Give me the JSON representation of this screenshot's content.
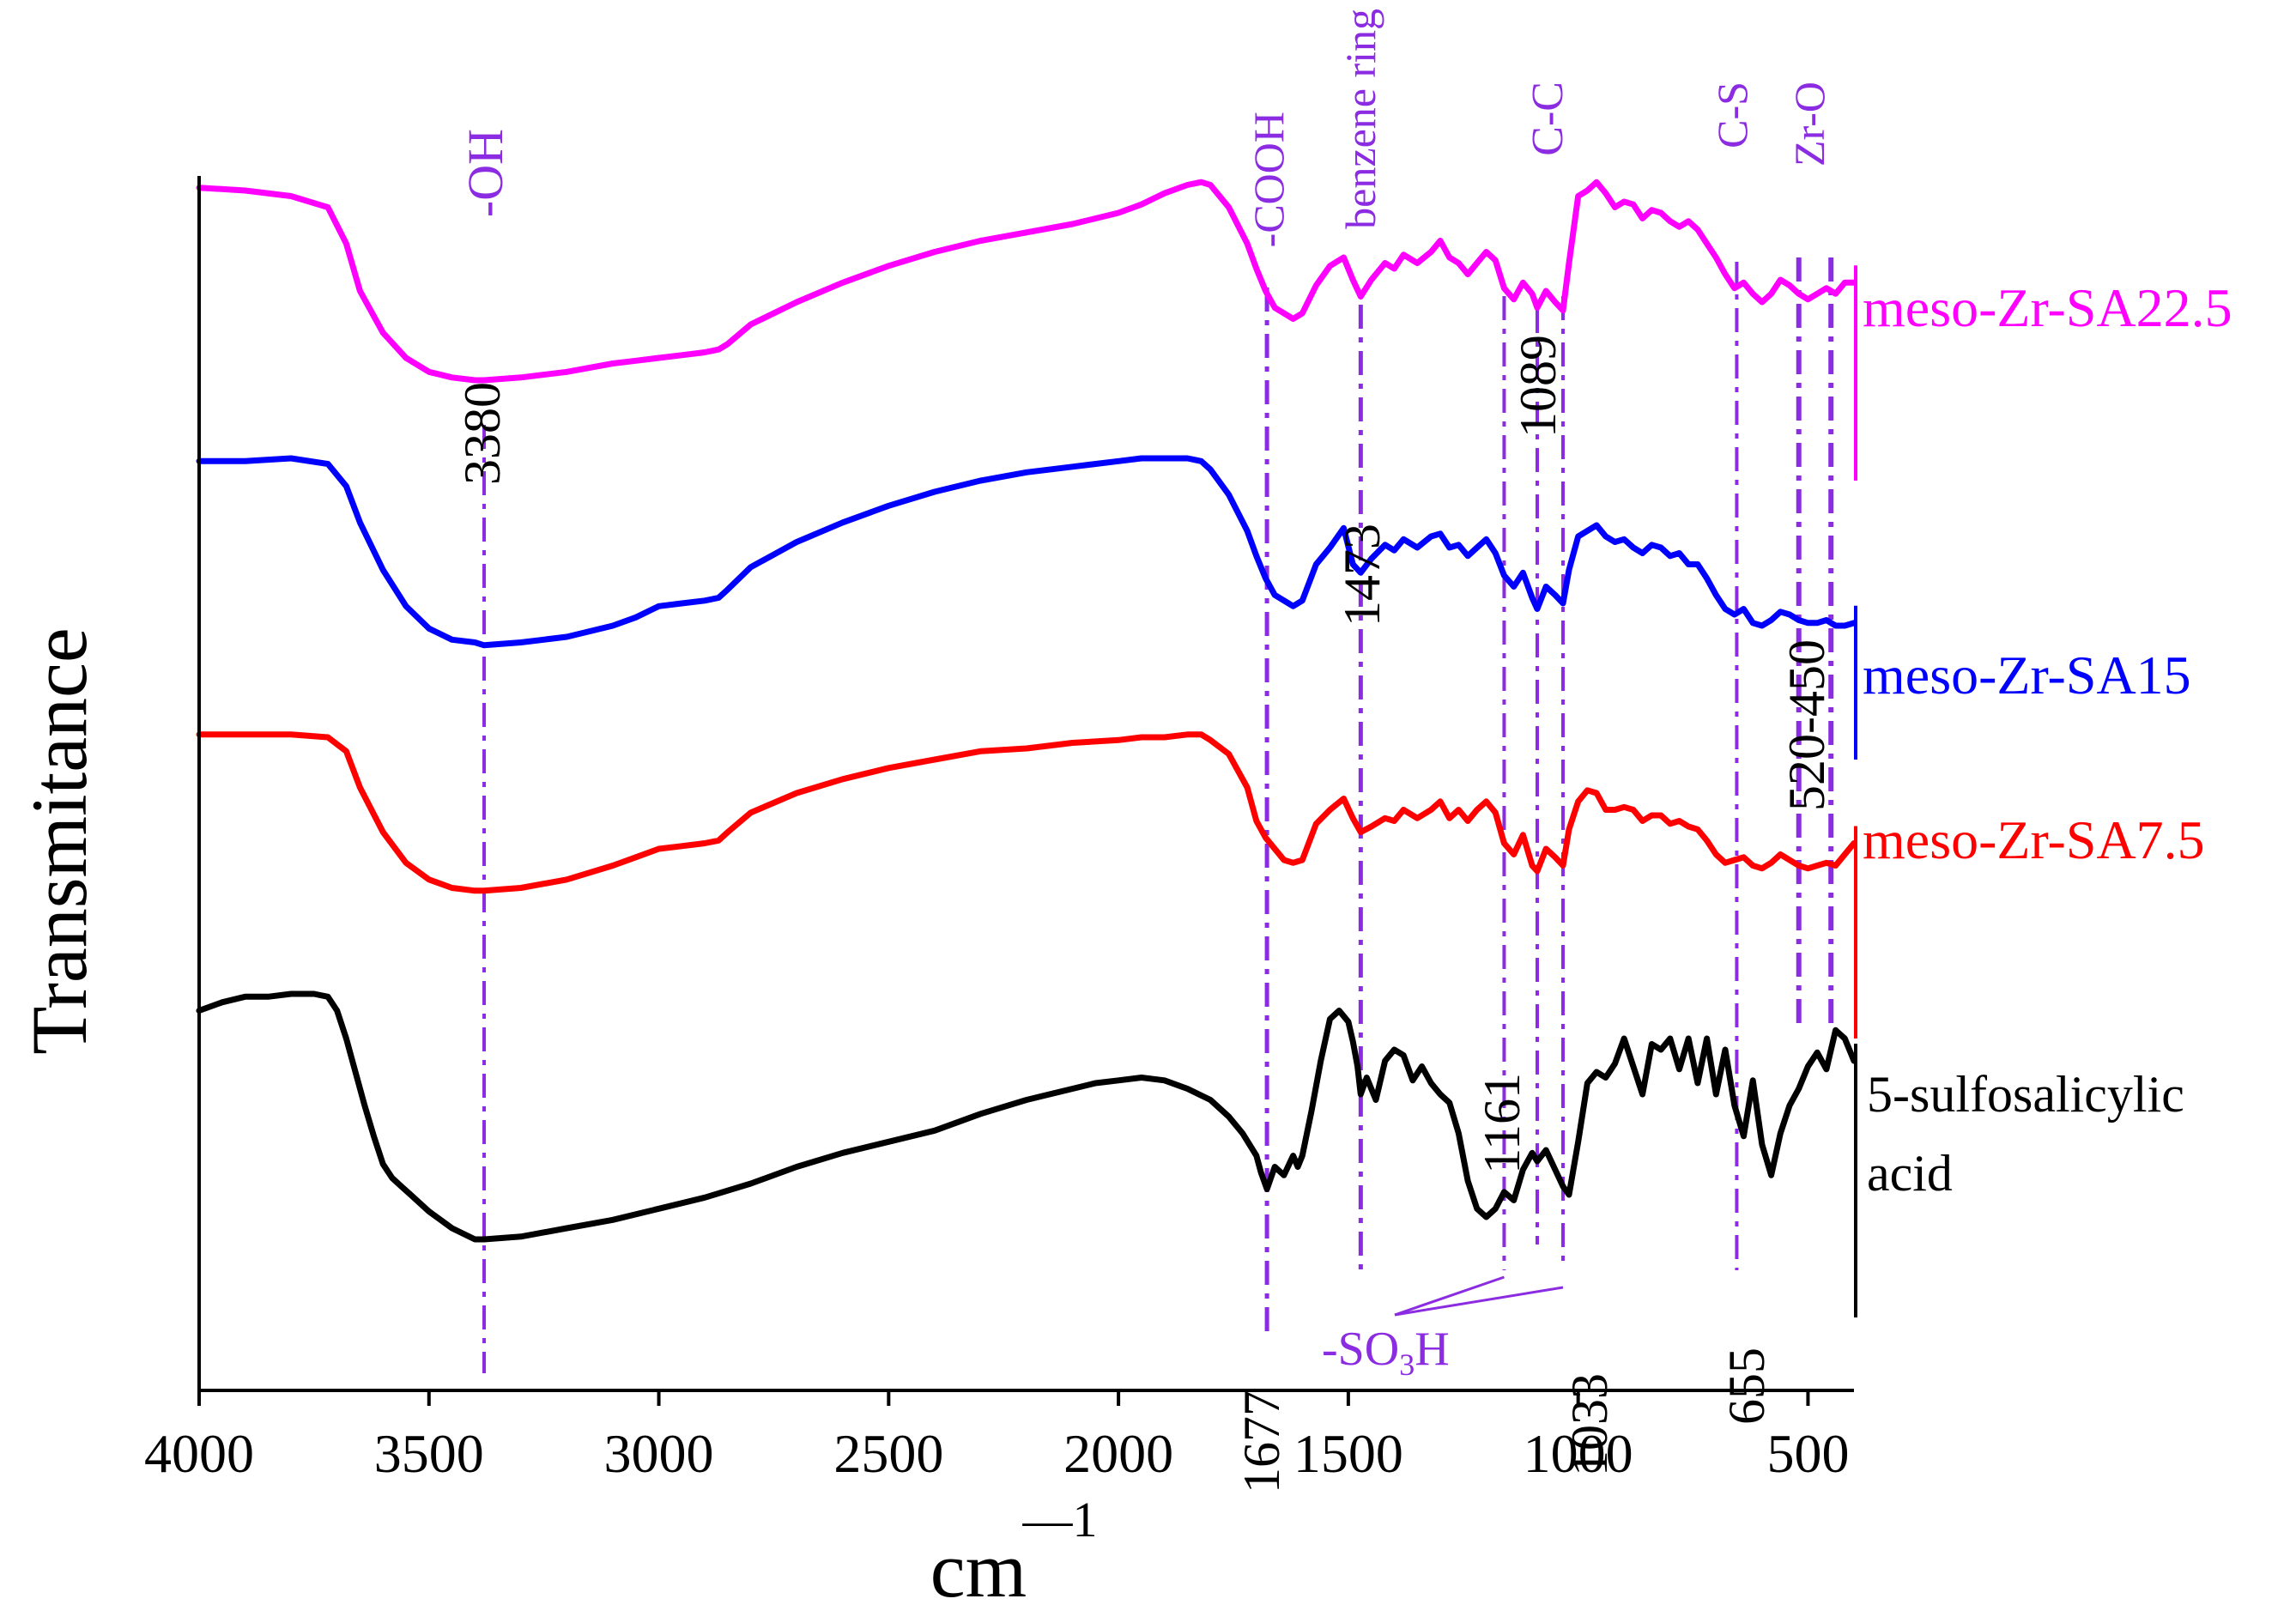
{
  "chart_data": {
    "type": "line",
    "title": "",
    "xlabel": "cm",
    "xlabel_superscript": "—1",
    "ylabel": "Transmitance",
    "xlim": [
      4000,
      400
    ],
    "x_reversed": true,
    "x_ticks": [
      {
        "value": 4000,
        "label": "4000"
      },
      {
        "value": 3500,
        "label": "3500"
      },
      {
        "value": 3000,
        "label": "3000"
      },
      {
        "value": 2500,
        "label": "2500"
      },
      {
        "value": 2000,
        "label": "2000"
      },
      {
        "value": 1500,
        "label": "1500"
      },
      {
        "value": 1000,
        "label": "1000"
      },
      {
        "value": 500,
        "label": "500"
      }
    ],
    "y_ticks_shown": false,
    "grid": false,
    "legend": "labels at right end of each trace",
    "series": [
      {
        "name": "meso-Zr-SA22.5",
        "color": "#ff00ff",
        "stack_index": 3,
        "x": [
          4000,
          3900,
          3800,
          3720,
          3680,
          3650,
          3600,
          3550,
          3500,
          3450,
          3400,
          3380,
          3300,
          3200,
          3100,
          3050,
          3000,
          2950,
          2900,
          2870,
          2850,
          2800,
          2700,
          2600,
          2500,
          2400,
          2300,
          2200,
          2100,
          2000,
          1950,
          1900,
          1850,
          1820,
          1800,
          1760,
          1720,
          1700,
          1680,
          1660,
          1640,
          1620,
          1600,
          1570,
          1540,
          1510,
          1490,
          1473,
          1450,
          1420,
          1400,
          1380,
          1350,
          1320,
          1300,
          1280,
          1260,
          1240,
          1220,
          1200,
          1180,
          1161,
          1140,
          1120,
          1100,
          1089,
          1070,
          1050,
          1033,
          1020,
          1000,
          980,
          960,
          940,
          920,
          900,
          880,
          860,
          840,
          820,
          800,
          780,
          760,
          740,
          720,
          700,
          680,
          660,
          640,
          620,
          600,
          580,
          560,
          540,
          520,
          500,
          480,
          460,
          440,
          420,
          400
        ],
        "y": [
          3.45,
          3.44,
          3.42,
          3.38,
          3.25,
          3.08,
          2.93,
          2.84,
          2.79,
          2.77,
          2.76,
          2.76,
          2.77,
          2.79,
          2.82,
          2.83,
          2.84,
          2.85,
          2.86,
          2.87,
          2.89,
          2.96,
          3.04,
          3.11,
          3.17,
          3.22,
          3.26,
          3.29,
          3.32,
          3.36,
          3.39,
          3.43,
          3.46,
          3.47,
          3.46,
          3.38,
          3.25,
          3.16,
          3.08,
          3.02,
          3.0,
          2.98,
          3.0,
          3.1,
          3.17,
          3.2,
          3.12,
          3.06,
          3.12,
          3.18,
          3.16,
          3.21,
          3.18,
          3.22,
          3.26,
          3.2,
          3.18,
          3.14,
          3.18,
          3.22,
          3.19,
          3.09,
          3.05,
          3.11,
          3.07,
          3.02,
          3.08,
          3.04,
          3.01,
          3.18,
          3.42,
          3.44,
          3.47,
          3.43,
          3.38,
          3.4,
          3.39,
          3.34,
          3.37,
          3.36,
          3.33,
          3.31,
          3.33,
          3.3,
          3.25,
          3.2,
          3.14,
          3.09,
          3.11,
          3.07,
          3.04,
          3.07,
          3.12,
          3.1,
          3.07,
          3.05,
          3.07,
          3.09,
          3.07,
          3.11,
          3.11
        ]
      },
      {
        "name": "meso-Zr-SA15",
        "color": "#0000ff",
        "stack_index": 2,
        "x": [
          4000,
          3900,
          3800,
          3720,
          3680,
          3650,
          3600,
          3550,
          3500,
          3450,
          3400,
          3380,
          3300,
          3200,
          3100,
          3050,
          3000,
          2950,
          2900,
          2870,
          2850,
          2800,
          2700,
          2600,
          2500,
          2400,
          2300,
          2200,
          2100,
          2000,
          1950,
          1900,
          1850,
          1820,
          1800,
          1760,
          1720,
          1700,
          1680,
          1660,
          1640,
          1620,
          1600,
          1570,
          1540,
          1510,
          1490,
          1473,
          1450,
          1420,
          1400,
          1380,
          1350,
          1320,
          1300,
          1280,
          1260,
          1240,
          1220,
          1200,
          1180,
          1161,
          1140,
          1120,
          1100,
          1089,
          1070,
          1050,
          1033,
          1020,
          1000,
          980,
          960,
          940,
          920,
          900,
          880,
          860,
          840,
          820,
          800,
          780,
          760,
          740,
          720,
          700,
          680,
          660,
          640,
          620,
          600,
          580,
          560,
          540,
          520,
          500,
          480,
          460,
          440,
          420,
          400
        ],
        "y": [
          2.47,
          2.47,
          2.48,
          2.46,
          2.38,
          2.25,
          2.08,
          1.95,
          1.87,
          1.83,
          1.82,
          1.81,
          1.82,
          1.84,
          1.88,
          1.91,
          1.95,
          1.96,
          1.97,
          1.98,
          2.01,
          2.09,
          2.18,
          2.25,
          2.31,
          2.36,
          2.4,
          2.43,
          2.45,
          2.47,
          2.48,
          2.48,
          2.48,
          2.47,
          2.44,
          2.35,
          2.22,
          2.13,
          2.05,
          1.99,
          1.97,
          1.95,
          1.97,
          2.1,
          2.16,
          2.23,
          2.1,
          2.07,
          2.12,
          2.17,
          2.15,
          2.19,
          2.16,
          2.2,
          2.21,
          2.16,
          2.17,
          2.13,
          2.16,
          2.19,
          2.14,
          2.06,
          2.02,
          2.07,
          1.98,
          1.94,
          2.02,
          1.99,
          1.96,
          2.08,
          2.2,
          2.22,
          2.24,
          2.2,
          2.18,
          2.19,
          2.16,
          2.14,
          2.17,
          2.16,
          2.13,
          2.14,
          2.1,
          2.1,
          2.05,
          1.99,
          1.94,
          1.92,
          1.94,
          1.89,
          1.88,
          1.9,
          1.93,
          1.92,
          1.9,
          1.89,
          1.89,
          1.9,
          1.88,
          1.88,
          1.89
        ]
      },
      {
        "name": "meso-Zr-SA7.5",
        "color": "#ff0000",
        "stack_index": 1,
        "x": [
          4000,
          3900,
          3800,
          3720,
          3680,
          3650,
          3600,
          3550,
          3500,
          3450,
          3400,
          3380,
          3300,
          3200,
          3100,
          3050,
          3000,
          2950,
          2900,
          2870,
          2850,
          2800,
          2700,
          2600,
          2500,
          2400,
          2300,
          2200,
          2100,
          2000,
          1950,
          1900,
          1850,
          1820,
          1800,
          1760,
          1720,
          1700,
          1680,
          1660,
          1640,
          1620,
          1600,
          1570,
          1540,
          1510,
          1490,
          1473,
          1450,
          1420,
          1400,
          1380,
          1350,
          1320,
          1300,
          1280,
          1260,
          1240,
          1220,
          1200,
          1180,
          1161,
          1140,
          1120,
          1100,
          1089,
          1070,
          1050,
          1033,
          1020,
          1000,
          980,
          960,
          940,
          920,
          900,
          880,
          860,
          840,
          820,
          800,
          780,
          760,
          740,
          720,
          700,
          680,
          660,
          640,
          620,
          600,
          580,
          560,
          540,
          520,
          500,
          480,
          460,
          440,
          420,
          400
        ],
        "y": [
          1.49,
          1.49,
          1.49,
          1.48,
          1.43,
          1.3,
          1.14,
          1.03,
          0.97,
          0.94,
          0.93,
          0.93,
          0.94,
          0.97,
          1.02,
          1.05,
          1.08,
          1.09,
          1.1,
          1.11,
          1.14,
          1.21,
          1.28,
          1.33,
          1.37,
          1.4,
          1.43,
          1.44,
          1.46,
          1.47,
          1.48,
          1.48,
          1.49,
          1.49,
          1.47,
          1.42,
          1.3,
          1.18,
          1.12,
          1.08,
          1.04,
          1.03,
          1.04,
          1.17,
          1.22,
          1.26,
          1.19,
          1.14,
          1.16,
          1.19,
          1.18,
          1.22,
          1.19,
          1.22,
          1.25,
          1.19,
          1.22,
          1.18,
          1.22,
          1.25,
          1.21,
          1.1,
          1.06,
          1.13,
          1.02,
          1.0,
          1.08,
          1.05,
          1.02,
          1.15,
          1.25,
          1.29,
          1.28,
          1.22,
          1.22,
          1.23,
          1.22,
          1.18,
          1.2,
          1.2,
          1.17,
          1.18,
          1.16,
          1.15,
          1.11,
          1.06,
          1.03,
          1.04,
          1.05,
          1.02,
          1.01,
          1.03,
          1.06,
          1.04,
          1.02,
          1.01,
          1.02,
          1.03,
          1.02,
          1.06,
          1.1
        ]
      },
      {
        "name": "5-sulfosalicylic acid",
        "name_lines": [
          "5-sulfosalicylic",
          "acid"
        ],
        "color": "#000000",
        "stack_index": 0,
        "x": [
          4000,
          3950,
          3900,
          3850,
          3800,
          3750,
          3720,
          3700,
          3680,
          3660,
          3640,
          3620,
          3600,
          3580,
          3560,
          3540,
          3500,
          3450,
          3400,
          3380,
          3300,
          3200,
          3100,
          3000,
          2900,
          2800,
          2700,
          2600,
          2500,
          2400,
          2300,
          2200,
          2100,
          2050,
          2000,
          1950,
          1900,
          1850,
          1800,
          1760,
          1730,
          1700,
          1690,
          1677,
          1660,
          1640,
          1620,
          1610,
          1600,
          1580,
          1560,
          1540,
          1520,
          1500,
          1490,
          1480,
          1473,
          1460,
          1440,
          1420,
          1400,
          1380,
          1360,
          1340,
          1320,
          1300,
          1280,
          1260,
          1240,
          1220,
          1200,
          1180,
          1161,
          1140,
          1120,
          1100,
          1089,
          1070,
          1050,
          1033,
          1020,
          1000,
          980,
          960,
          940,
          920,
          900,
          880,
          860,
          840,
          820,
          800,
          780,
          760,
          740,
          720,
          700,
          680,
          660,
          640,
          620,
          600,
          580,
          560,
          540,
          520,
          500,
          480,
          460,
          440,
          420,
          400
        ],
        "y": [
          0.5,
          0.53,
          0.55,
          0.55,
          0.56,
          0.56,
          0.55,
          0.5,
          0.4,
          0.28,
          0.16,
          0.05,
          -0.05,
          -0.1,
          -0.13,
          -0.16,
          -0.22,
          -0.28,
          -0.32,
          -0.32,
          -0.31,
          -0.28,
          -0.25,
          -0.21,
          -0.17,
          -0.12,
          -0.06,
          -0.01,
          0.03,
          0.07,
          0.13,
          0.18,
          0.22,
          0.24,
          0.25,
          0.26,
          0.25,
          0.22,
          0.18,
          0.12,
          0.06,
          -0.02,
          -0.08,
          -0.14,
          -0.06,
          -0.09,
          -0.02,
          -0.06,
          -0.02,
          0.14,
          0.32,
          0.47,
          0.5,
          0.46,
          0.39,
          0.3,
          0.2,
          0.26,
          0.18,
          0.32,
          0.36,
          0.34,
          0.25,
          0.3,
          0.24,
          0.2,
          0.17,
          0.06,
          -0.11,
          -0.21,
          -0.24,
          -0.21,
          -0.15,
          -0.18,
          -0.07,
          -0.01,
          -0.04,
          0.0,
          -0.07,
          -0.13,
          -0.16,
          0.03,
          0.24,
          0.28,
          0.26,
          0.31,
          0.4,
          0.3,
          0.2,
          0.38,
          0.36,
          0.4,
          0.29,
          0.4,
          0.24,
          0.4,
          0.2,
          0.36,
          0.16,
          0.05,
          0.25,
          0.02,
          -0.09,
          0.06,
          0.16,
          0.22,
          0.3,
          0.35,
          0.29,
          0.43,
          0.4,
          0.32
        ]
      }
    ],
    "annotations": {
      "band_lines": [
        {
          "x": 3380,
          "label": "-OH",
          "value_label": "3380",
          "value_label_pos": "top"
        },
        {
          "x": 1677,
          "label": "-COOH",
          "value_label": "1677",
          "value_label_pos": "bottom"
        },
        {
          "x": 1473,
          "label": "benzene ring",
          "value_label": "1473",
          "value_label_pos": "mid"
        },
        {
          "x": 1161,
          "label": "",
          "value_label": "1161",
          "value_label_pos": "low"
        },
        {
          "x": 1089,
          "label": "C-C",
          "value_label": "1089",
          "value_label_pos": "top"
        },
        {
          "x": 1033,
          "label": "",
          "value_label": "1033",
          "value_label_pos": "bottom"
        },
        {
          "x": 655,
          "label": "C-S",
          "value_label": "655",
          "value_label_pos": "bottom"
        },
        {
          "x": 520,
          "label": "",
          "value_label": "",
          "value_label_pos": ""
        },
        {
          "x": 450,
          "label": "Zr-O",
          "value_label": "520-450",
          "value_label_pos": "mid"
        }
      ],
      "so3h": {
        "text": "-SO",
        "subscript": "3",
        "suffix": "H",
        "points_to": [
          1161,
          1033
        ]
      }
    }
  }
}
